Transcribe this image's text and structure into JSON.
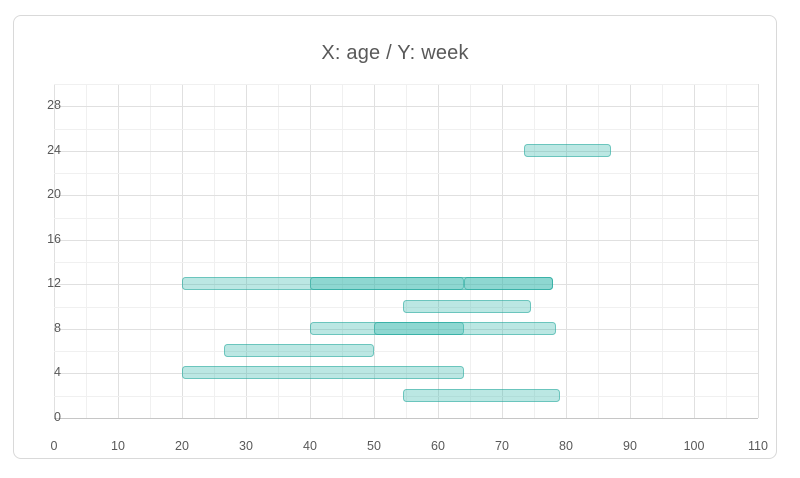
{
  "chart": {
    "title": "X: age / Y: week"
  },
  "chart_data": {
    "type": "range-bar",
    "title": "X: age / Y: week",
    "xlabel": "age",
    "ylabel": "week",
    "x_axis": {
      "min": 0,
      "max": 110,
      "major_step": 10,
      "minor_step": 5,
      "tick_labels": [
        0,
        10,
        20,
        30,
        40,
        50,
        60,
        70,
        80,
        90,
        100,
        110
      ]
    },
    "y_axis": {
      "min": 0,
      "max": 30,
      "major_step": 4,
      "minor_step": 2,
      "tick_labels": [
        0,
        4,
        8,
        12,
        16,
        20,
        24,
        28
      ]
    },
    "grid": {
      "minor_color": "#f0f0f0",
      "major_color": "#e0e0e0",
      "axis_color": "#c6c6c6"
    },
    "bars": [
      {
        "week": 2,
        "start": 54.5,
        "end": 79
      },
      {
        "week": 4,
        "start": 20,
        "end": 64
      },
      {
        "week": 6,
        "start": 26.5,
        "end": 50
      },
      {
        "week": 8,
        "start": 40,
        "end": 64
      },
      {
        "week": 8,
        "start": 50,
        "end": 78.5
      },
      {
        "week": 10,
        "start": 54.5,
        "end": 74.5
      },
      {
        "week": 12,
        "start": 20,
        "end": 64
      },
      {
        "week": 12,
        "start": 40,
        "end": 78
      },
      {
        "week": 12,
        "start": 64,
        "end": 78
      },
      {
        "week": 24,
        "start": 73.5,
        "end": 87
      }
    ],
    "bar_style": {
      "fill": "rgba(61,186,174,0.35)",
      "border": "rgba(27,163,151,0.5)"
    },
    "text_color": "#595959",
    "legend": "none",
    "grid_on": true
  }
}
